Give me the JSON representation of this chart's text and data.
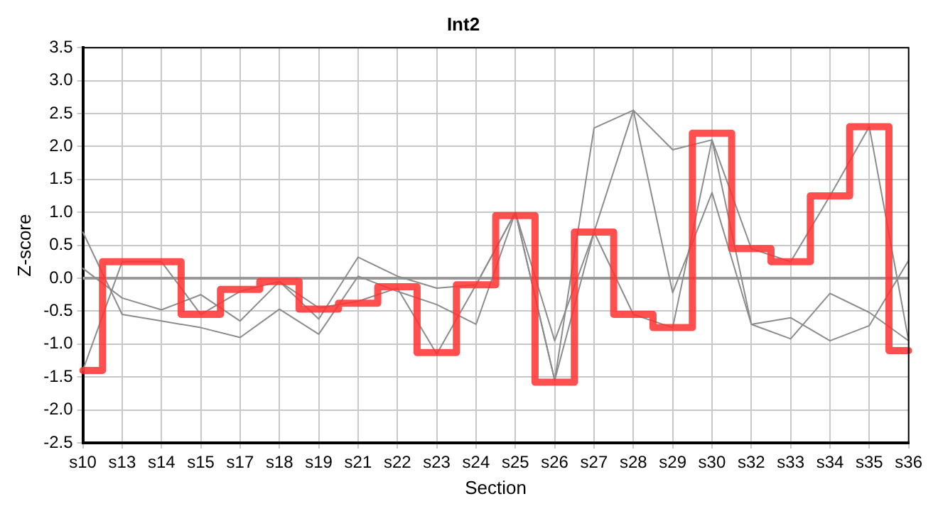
{
  "chart_data": {
    "type": "line",
    "title": "Int2",
    "xlabel": "Section",
    "ylabel": "Z-score",
    "categories": [
      "s10",
      "s13",
      "s14",
      "s15",
      "s17",
      "s18",
      "s19",
      "s21",
      "s22",
      "s23",
      "s24",
      "s25",
      "s26",
      "s27",
      "s28",
      "s29",
      "s30",
      "s32",
      "s33",
      "s34",
      "s35",
      "s36"
    ],
    "series": [
      {
        "color": "#8c8c8c",
        "values": [
          -1.4,
          0.25,
          0.25,
          -0.55,
          -0.2,
          -0.05,
          -0.45,
          -0.35,
          -0.15,
          -1.15,
          -0.1,
          1.0,
          -1.55,
          0.7,
          -0.55,
          -0.75,
          2.1,
          0.45,
          0.25,
          1.25,
          2.3,
          -0.95
        ]
      },
      {
        "color": "#8c8c8c",
        "values": [
          0.7,
          -0.55,
          -0.65,
          -0.75,
          -0.9,
          -0.47,
          -0.85,
          0.03,
          -0.2,
          -0.4,
          -0.7,
          1.0,
          -1.55,
          2.28,
          2.55,
          1.95,
          2.1,
          -0.7,
          -0.6,
          -0.95,
          -0.72,
          0.27
        ]
      },
      {
        "color": "#8c8c8c",
        "values": [
          0.15,
          -0.3,
          -0.48,
          -0.25,
          -0.65,
          -0.05,
          -0.62,
          0.32,
          0.03,
          -0.15,
          -0.1,
          1.0,
          -0.95,
          0.7,
          2.55,
          -0.22,
          1.3,
          -0.7,
          -0.92,
          -0.23,
          -0.52,
          -0.95
        ]
      },
      {
        "type": "step",
        "color": "#ff3030",
        "values": [
          -1.4,
          0.25,
          0.25,
          -0.55,
          -0.17,
          -0.05,
          -0.47,
          -0.38,
          -0.13,
          -1.13,
          -0.1,
          0.95,
          -1.58,
          0.7,
          -0.55,
          -0.75,
          2.2,
          0.45,
          0.25,
          1.25,
          2.3,
          -1.1
        ]
      }
    ],
    "ylim": [
      -2.5,
      3.5
    ],
    "yticks": [
      {
        "value": -2.5,
        "label": "-2.5"
      },
      {
        "value": -2,
        "label": "-2.0"
      },
      {
        "value": -1.5,
        "label": "-1.5"
      },
      {
        "value": -1,
        "label": "-1.0"
      },
      {
        "value": -0.5,
        "label": "-0.5"
      },
      {
        "value": 0,
        "label": "0.0"
      },
      {
        "value": 0.5,
        "label": "0.5"
      },
      {
        "value": 1,
        "label": "1.0"
      },
      {
        "value": 1.5,
        "label": "1.5"
      },
      {
        "value": 2,
        "label": "2.0"
      },
      {
        "value": 2.5,
        "label": "2.5"
      },
      {
        "value": 3,
        "label": "3.0"
      },
      {
        "value": 3.5,
        "label": "3.5"
      }
    ],
    "ref_lines": [
      {
        "axis": "y",
        "value": 0,
        "color": "#999999"
      }
    ],
    "grid": true,
    "legend": false,
    "marker": "none",
    "line_style": "solid"
  }
}
